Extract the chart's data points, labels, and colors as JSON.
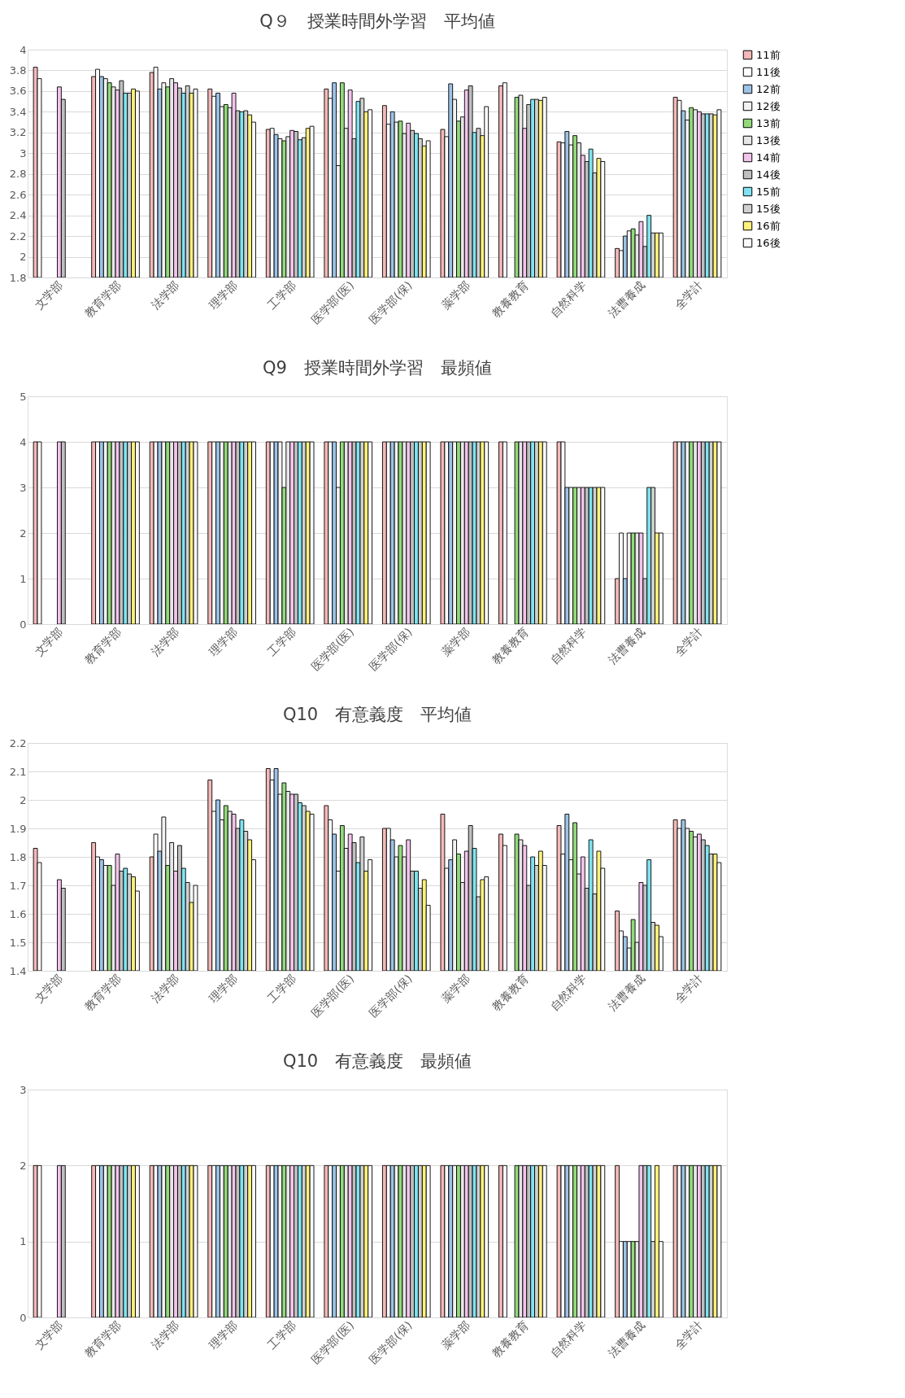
{
  "chart_data": [
    {
      "type": "bar",
      "title": "Q９　授業時間外学習　平均値",
      "categories": [
        "文学部",
        "教育学部",
        "法学部",
        "理学部",
        "工学部",
        "医学部(医)",
        "医学部(保)",
        "薬学部",
        "教養教育",
        "自然科学",
        "法曹養成",
        "全学計"
      ],
      "ylim": [
        1.8,
        4
      ],
      "yticks": [
        1.8,
        2,
        2.2,
        2.4,
        2.6,
        2.8,
        3,
        3.2,
        3.4,
        3.6,
        3.8,
        4
      ],
      "grid": "y",
      "legend": "right",
      "series": [
        {
          "name": "11前",
          "color": "#f4b8b8",
          "values": [
            3.83,
            3.74,
            3.78,
            3.62,
            3.23,
            3.62,
            3.46,
            3.23,
            3.65,
            3.11,
            2.08,
            3.54
          ]
        },
        {
          "name": "11後",
          "color": "#ffffff",
          "values": [
            3.72,
            3.81,
            3.83,
            3.55,
            3.24,
            3.53,
            3.28,
            3.16,
            3.68,
            3.1,
            2.06,
            3.51
          ]
        },
        {
          "name": "12前",
          "color": "#9dc3e6",
          "values": [
            null,
            3.74,
            3.62,
            3.58,
            3.18,
            3.68,
            3.4,
            3.67,
            null,
            3.21,
            2.2,
            3.41
          ]
        },
        {
          "name": "12後",
          "color": "#f2f2f2",
          "values": [
            null,
            3.72,
            3.68,
            3.45,
            3.14,
            2.88,
            3.3,
            3.52,
            null,
            3.08,
            2.25,
            3.32
          ]
        },
        {
          "name": "13前",
          "color": "#92d97a",
          "values": [
            null,
            3.68,
            3.64,
            3.47,
            3.12,
            3.68,
            3.31,
            3.31,
            3.54,
            3.17,
            2.27,
            3.44
          ]
        },
        {
          "name": "13後",
          "color": "#e6e6e6",
          "values": [
            null,
            3.64,
            3.72,
            3.44,
            3.16,
            3.24,
            3.19,
            3.35,
            3.56,
            3.1,
            2.21,
            3.42
          ]
        },
        {
          "name": "14前",
          "color": "#f2c4ec",
          "values": [
            3.64,
            3.61,
            3.68,
            3.58,
            3.22,
            3.61,
            3.29,
            3.61,
            3.24,
            2.98,
            2.34,
            3.4
          ]
        },
        {
          "name": "14後",
          "color": "#bfbfbf",
          "values": [
            3.52,
            3.7,
            3.63,
            3.41,
            3.21,
            3.14,
            3.22,
            3.65,
            3.47,
            2.92,
            2.1,
            3.38
          ]
        },
        {
          "name": "15前",
          "color": "#7fe3f0",
          "values": [
            null,
            3.58,
            3.58,
            3.4,
            3.13,
            3.5,
            3.19,
            3.2,
            3.52,
            3.04,
            2.4,
            3.38
          ]
        },
        {
          "name": "15後",
          "color": "#d0d0d0",
          "values": [
            null,
            3.58,
            3.65,
            3.41,
            3.15,
            3.53,
            3.14,
            3.24,
            3.52,
            2.81,
            2.23,
            3.38
          ]
        },
        {
          "name": "16前",
          "color": "#fff27a",
          "values": [
            null,
            3.62,
            3.58,
            3.37,
            3.24,
            3.4,
            3.07,
            3.17,
            3.51,
            2.95,
            2.23,
            3.37
          ]
        },
        {
          "name": "16後",
          "color": "#fafafa",
          "values": [
            null,
            3.6,
            3.62,
            3.3,
            3.26,
            3.42,
            3.12,
            3.45,
            3.54,
            2.92,
            2.23,
            3.42
          ]
        }
      ]
    },
    {
      "type": "bar",
      "title": "Q9　授業時間外学習　最頻値",
      "categories": [
        "文学部",
        "教育学部",
        "法学部",
        "理学部",
        "工学部",
        "医学部(医)",
        "医学部(保)",
        "薬学部",
        "教養教育",
        "自然科学",
        "法曹養成",
        "全学計"
      ],
      "ylim": [
        0,
        5
      ],
      "yticks": [
        0,
        1,
        2,
        3,
        4,
        5
      ],
      "grid": "y",
      "legend": "right",
      "series": [
        {
          "name": "11前",
          "color": "#f4b8b8",
          "values": [
            4,
            4,
            4,
            4,
            4,
            4,
            4,
            4,
            4,
            4,
            1,
            4
          ]
        },
        {
          "name": "11後",
          "color": "#ffffff",
          "values": [
            4,
            4,
            4,
            4,
            4,
            4,
            4,
            4,
            4,
            4,
            2,
            4
          ]
        },
        {
          "name": "12前",
          "color": "#9dc3e6",
          "values": [
            null,
            4,
            4,
            4,
            4,
            4,
            4,
            4,
            null,
            3,
            1,
            4
          ]
        },
        {
          "name": "12後",
          "color": "#f2f2f2",
          "values": [
            null,
            4,
            4,
            4,
            4,
            3,
            4,
            4,
            null,
            3,
            2,
            4
          ]
        },
        {
          "name": "13前",
          "color": "#92d97a",
          "values": [
            null,
            4,
            4,
            4,
            3,
            4,
            4,
            4,
            4,
            3,
            2,
            4
          ]
        },
        {
          "name": "13後",
          "color": "#e6e6e6",
          "values": [
            null,
            4,
            4,
            4,
            4,
            4,
            4,
            4,
            4,
            3,
            2,
            4
          ]
        },
        {
          "name": "14前",
          "color": "#f2c4ec",
          "values": [
            4,
            4,
            4,
            4,
            4,
            4,
            4,
            4,
            4,
            3,
            2,
            4
          ]
        },
        {
          "name": "14後",
          "color": "#bfbfbf",
          "values": [
            4,
            4,
            4,
            4,
            4,
            4,
            4,
            4,
            4,
            3,
            1,
            4
          ]
        },
        {
          "name": "15前",
          "color": "#7fe3f0",
          "values": [
            null,
            4,
            4,
            4,
            4,
            4,
            4,
            4,
            4,
            3,
            3,
            4
          ]
        },
        {
          "name": "15後",
          "color": "#d0d0d0",
          "values": [
            null,
            4,
            4,
            4,
            4,
            4,
            4,
            4,
            4,
            3,
            3,
            4
          ]
        },
        {
          "name": "16前",
          "color": "#fff27a",
          "values": [
            null,
            4,
            4,
            4,
            4,
            4,
            4,
            4,
            4,
            3,
            2,
            4
          ]
        },
        {
          "name": "16後",
          "color": "#fafafa",
          "values": [
            null,
            4,
            4,
            4,
            4,
            4,
            4,
            4,
            4,
            3,
            2,
            4
          ]
        }
      ]
    },
    {
      "type": "bar",
      "title": "Q10　有意義度　平均値",
      "categories": [
        "文学部",
        "教育学部",
        "法学部",
        "理学部",
        "工学部",
        "医学部(医)",
        "医学部(保)",
        "薬学部",
        "教養教育",
        "自然科学",
        "法曹養成",
        "全学計"
      ],
      "ylim": [
        1.4,
        2.2
      ],
      "yticks": [
        1.4,
        1.5,
        1.6,
        1.7,
        1.8,
        1.9,
        2,
        2.1,
        2.2
      ],
      "grid": "y",
      "legend": "right",
      "series": [
        {
          "name": "11前",
          "color": "#f4b8b8",
          "values": [
            1.83,
            1.85,
            1.8,
            2.07,
            2.11,
            1.98,
            1.9,
            1.95,
            1.88,
            1.91,
            1.61,
            1.93
          ]
        },
        {
          "name": "11後",
          "color": "#ffffff",
          "values": [
            1.78,
            1.8,
            1.88,
            1.96,
            2.07,
            1.93,
            1.9,
            1.76,
            1.84,
            1.81,
            1.54,
            1.9
          ]
        },
        {
          "name": "12前",
          "color": "#9dc3e6",
          "values": [
            null,
            1.79,
            1.82,
            2.0,
            2.11,
            1.88,
            1.86,
            1.79,
            null,
            1.95,
            1.52,
            1.93
          ]
        },
        {
          "name": "12後",
          "color": "#f2f2f2",
          "values": [
            null,
            1.77,
            1.94,
            1.93,
            2.02,
            1.75,
            1.8,
            1.86,
            null,
            1.79,
            1.48,
            1.9
          ]
        },
        {
          "name": "13前",
          "color": "#92d97a",
          "values": [
            null,
            1.77,
            1.77,
            1.98,
            2.06,
            1.91,
            1.84,
            1.81,
            1.88,
            1.92,
            1.58,
            1.89
          ]
        },
        {
          "name": "13後",
          "color": "#e6e6e6",
          "values": [
            null,
            1.7,
            1.85,
            1.96,
            2.03,
            1.83,
            1.8,
            1.71,
            1.86,
            1.74,
            1.5,
            1.87
          ]
        },
        {
          "name": "14前",
          "color": "#f2c4ec",
          "values": [
            1.72,
            1.81,
            1.75,
            1.95,
            2.02,
            1.88,
            1.86,
            1.82,
            1.84,
            1.8,
            1.71,
            1.88
          ]
        },
        {
          "name": "14後",
          "color": "#bfbfbf",
          "values": [
            1.69,
            1.75,
            1.84,
            1.9,
            2.02,
            1.85,
            1.75,
            1.91,
            1.7,
            1.69,
            1.7,
            1.86
          ]
        },
        {
          "name": "15前",
          "color": "#7fe3f0",
          "values": [
            null,
            1.76,
            1.76,
            1.93,
            1.99,
            1.78,
            1.75,
            1.83,
            1.8,
            1.86,
            1.79,
            1.84
          ]
        },
        {
          "name": "15後",
          "color": "#d0d0d0",
          "values": [
            null,
            1.74,
            1.71,
            1.89,
            1.98,
            1.87,
            1.69,
            1.66,
            1.77,
            1.67,
            1.57,
            1.81
          ]
        },
        {
          "name": "16前",
          "color": "#fff27a",
          "values": [
            null,
            1.73,
            1.64,
            1.86,
            1.96,
            1.75,
            1.72,
            1.72,
            1.82,
            1.82,
            1.56,
            1.81
          ]
        },
        {
          "name": "16後",
          "color": "#fafafa",
          "values": [
            null,
            1.68,
            1.7,
            1.79,
            1.95,
            1.79,
            1.63,
            1.73,
            1.77,
            1.76,
            1.52,
            1.78
          ]
        }
      ]
    },
    {
      "type": "bar",
      "title": "Q10　有意義度　最頻値",
      "categories": [
        "文学部",
        "教育学部",
        "法学部",
        "理学部",
        "工学部",
        "医学部(医)",
        "医学部(保)",
        "薬学部",
        "教養教育",
        "自然科学",
        "法曹養成",
        "全学計"
      ],
      "ylim": [
        0,
        3
      ],
      "yticks": [
        0,
        1,
        2,
        3
      ],
      "grid": "y",
      "legend": "right",
      "series": [
        {
          "name": "11前",
          "color": "#f4b8b8",
          "values": [
            2,
            2,
            2,
            2,
            2,
            2,
            2,
            2,
            2,
            2,
            2,
            2
          ]
        },
        {
          "name": "11後",
          "color": "#ffffff",
          "values": [
            2,
            2,
            2,
            2,
            2,
            2,
            2,
            2,
            2,
            2,
            1,
            2
          ]
        },
        {
          "name": "12前",
          "color": "#9dc3e6",
          "values": [
            null,
            2,
            2,
            2,
            2,
            2,
            2,
            2,
            null,
            2,
            1,
            2
          ]
        },
        {
          "name": "12後",
          "color": "#f2f2f2",
          "values": [
            null,
            2,
            2,
            2,
            2,
            2,
            2,
            2,
            null,
            2,
            1,
            2
          ]
        },
        {
          "name": "13前",
          "color": "#92d97a",
          "values": [
            null,
            2,
            2,
            2,
            2,
            2,
            2,
            2,
            2,
            2,
            1,
            2
          ]
        },
        {
          "name": "13後",
          "color": "#e6e6e6",
          "values": [
            null,
            2,
            2,
            2,
            2,
            2,
            2,
            2,
            2,
            2,
            1,
            2
          ]
        },
        {
          "name": "14前",
          "color": "#f2c4ec",
          "values": [
            2,
            2,
            2,
            2,
            2,
            2,
            2,
            2,
            2,
            2,
            2,
            2
          ]
        },
        {
          "name": "14後",
          "color": "#bfbfbf",
          "values": [
            2,
            2,
            2,
            2,
            2,
            2,
            2,
            2,
            2,
            2,
            2,
            2
          ]
        },
        {
          "name": "15前",
          "color": "#7fe3f0",
          "values": [
            null,
            2,
            2,
            2,
            2,
            2,
            2,
            2,
            2,
            2,
            2,
            2
          ]
        },
        {
          "name": "15後",
          "color": "#d0d0d0",
          "values": [
            null,
            2,
            2,
            2,
            2,
            2,
            2,
            2,
            2,
            2,
            1,
            2
          ]
        },
        {
          "name": "16前",
          "color": "#fff27a",
          "values": [
            null,
            2,
            2,
            2,
            2,
            2,
            2,
            2,
            2,
            2,
            2,
            2
          ]
        },
        {
          "name": "16後",
          "color": "#fafafa",
          "values": [
            null,
            2,
            2,
            2,
            2,
            2,
            2,
            2,
            2,
            2,
            1,
            2
          ]
        }
      ]
    }
  ]
}
